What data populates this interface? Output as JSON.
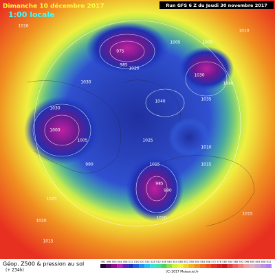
{
  "header": {
    "date": "Dimanche 10 décembre 2017",
    "time": "1:00 locale",
    "run": "Run GFS 6 Z du Jeudi 30 novembre 2017"
  },
  "footer": {
    "title": "Géop. Z500 & pression au sol",
    "lead": "(+ 234h)",
    "credit": "(C) 2017 Meteociel.fr"
  },
  "scale": [
    492,
    496,
    500,
    504,
    508,
    512,
    516,
    520,
    524,
    528,
    532,
    536,
    540,
    544,
    548,
    552,
    556,
    560,
    564,
    568,
    572,
    576,
    580,
    584,
    588,
    592,
    596,
    600,
    604,
    608,
    612
  ],
  "isobars": [
    1010,
    975,
    985,
    1005,
    1005,
    1030,
    1040,
    1035,
    1040,
    1030,
    1000,
    1005,
    990,
    1025,
    1010,
    1015,
    985,
    990,
    1010,
    1025,
    1020,
    1015,
    1015,
    1010,
    1015,
    1030,
    1020
  ]
}
